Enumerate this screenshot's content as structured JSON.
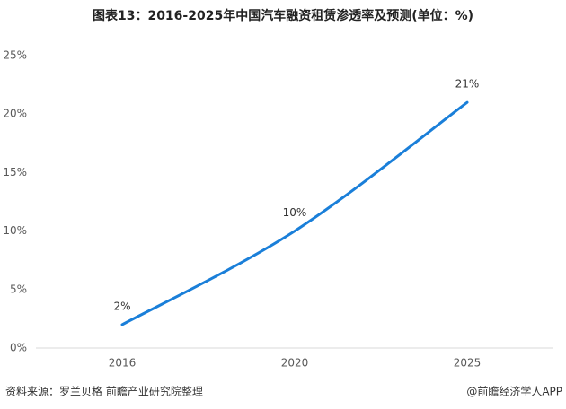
{
  "chart_data": {
    "type": "line",
    "title": "图表13：2016-2025年中国汽车融资租赁渗透率及预测(单位：%)",
    "categories": [
      "2016",
      "2020",
      "2025"
    ],
    "series": [
      {
        "name": "渗透率",
        "color": "#1a7fd9",
        "values": [
          2,
          10,
          21
        ],
        "value_labels": [
          "2%",
          "10%",
          "21%"
        ]
      }
    ],
    "ylim": [
      0,
      25
    ],
    "yticks": [
      {
        "value": 0,
        "label": "0%"
      },
      {
        "value": 5,
        "label": "5%"
      },
      {
        "value": 10,
        "label": "10%"
      },
      {
        "value": 15,
        "label": "15%"
      },
      {
        "value": 20,
        "label": "20%"
      },
      {
        "value": 25,
        "label": "25%"
      }
    ],
    "grid": false,
    "source": "资料来源：罗兰贝格 前瞻产业研究院整理",
    "credit": "@前瞻经济学人APP"
  }
}
